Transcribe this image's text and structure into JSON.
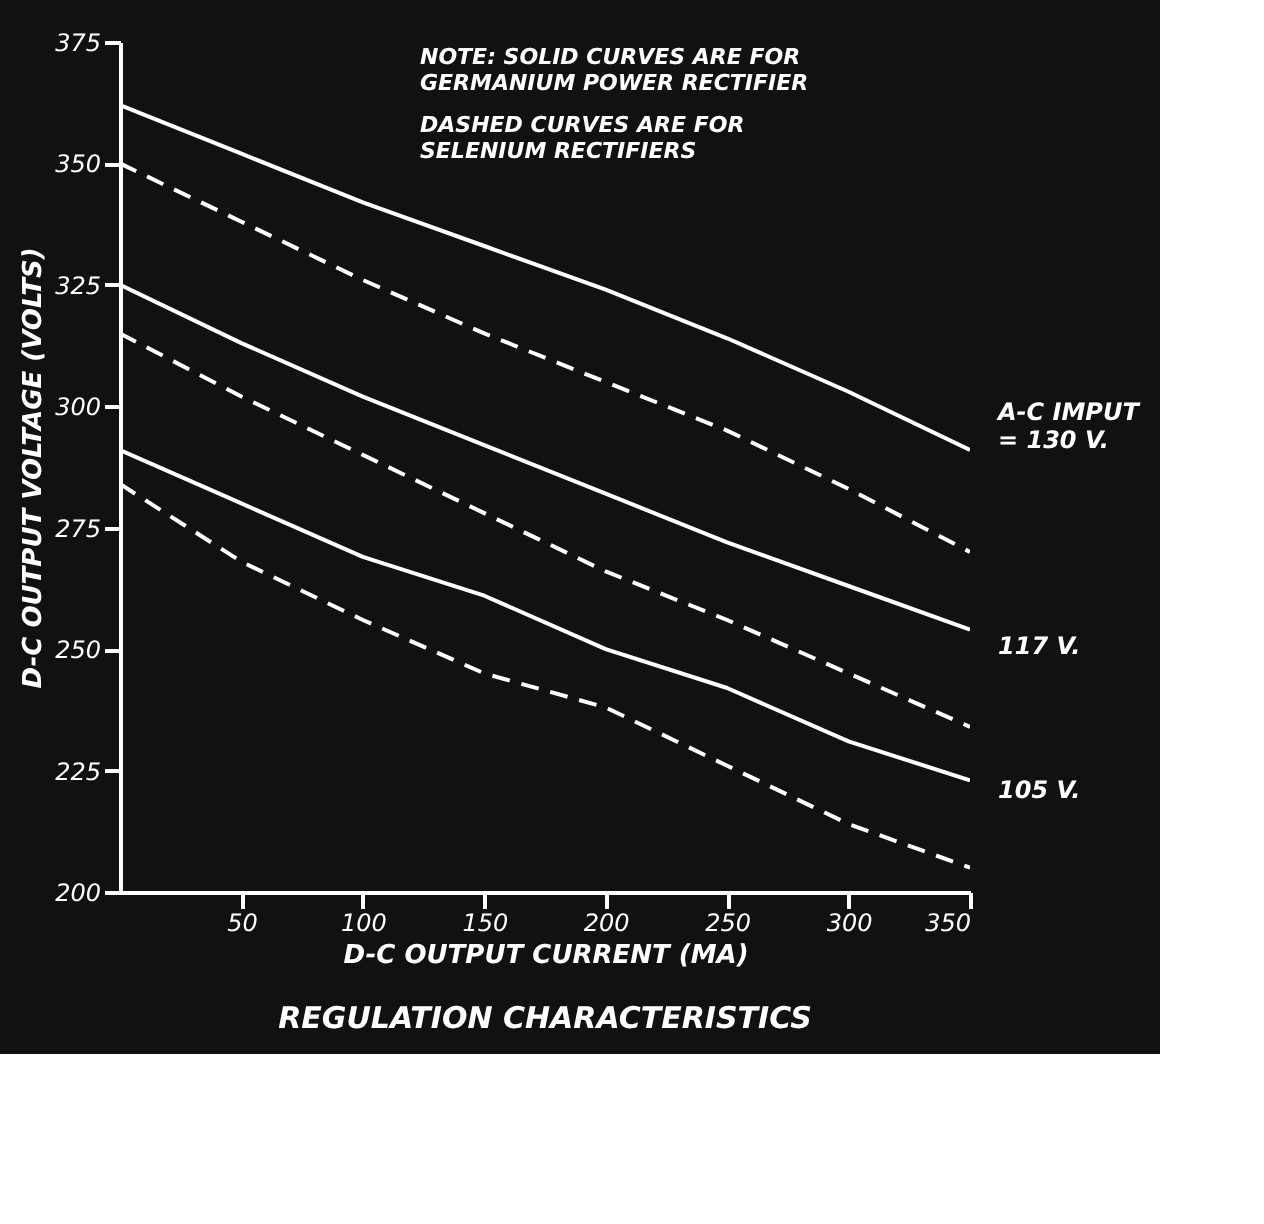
{
  "chart_data": {
    "type": "line",
    "title": "REGULATION CHARACTERISTICS",
    "xlabel": "D-C OUTPUT CURRENT (MA)",
    "ylabel": "D-C OUTPUT VOLTAGE (VOLTS)",
    "x": [
      0,
      50,
      100,
      150,
      200,
      250,
      300,
      350
    ],
    "series": [
      {
        "color": "#ffffff",
        "line_style": "solid",
        "values": [
          362,
          352,
          342,
          333,
          324,
          314,
          303,
          291
        ]
      },
      {
        "color": "#ffffff",
        "line_style": "dashed",
        "values": [
          350,
          338,
          326,
          315,
          305,
          295,
          283,
          270
        ]
      },
      {
        "color": "#ffffff",
        "line_style": "solid",
        "values": [
          325,
          313,
          302,
          292,
          282,
          272,
          263,
          254
        ]
      },
      {
        "color": "#ffffff",
        "line_style": "dashed",
        "values": [
          315,
          302,
          290,
          278,
          266,
          256,
          245,
          234
        ]
      },
      {
        "color": "#ffffff",
        "line_style": "solid",
        "values": [
          291,
          280,
          269,
          261,
          250,
          242,
          231,
          223
        ]
      },
      {
        "color": "#ffffff",
        "line_style": "dashed",
        "values": [
          284,
          268,
          256,
          245,
          238,
          226,
          214,
          205
        ]
      }
    ],
    "xlim": [
      0,
      350
    ],
    "xticks": [
      50,
      100,
      150,
      200,
      250,
      300,
      350
    ],
    "ylim": [
      200,
      375
    ],
    "yticks": [
      200,
      225,
      250,
      275,
      300,
      325,
      350,
      375
    ],
    "grid": false,
    "marker": "none",
    "annotations": [
      "NOTE: SOLID CURVES ARE FOR\nGERMANIUM POWER RECTIFIER",
      "DASHED CURVES ARE FOR\nSELENIUM RECTIFIERS",
      "A-C IMPUT\n= 130 V.",
      "117 V.",
      "105 V."
    ]
  }
}
